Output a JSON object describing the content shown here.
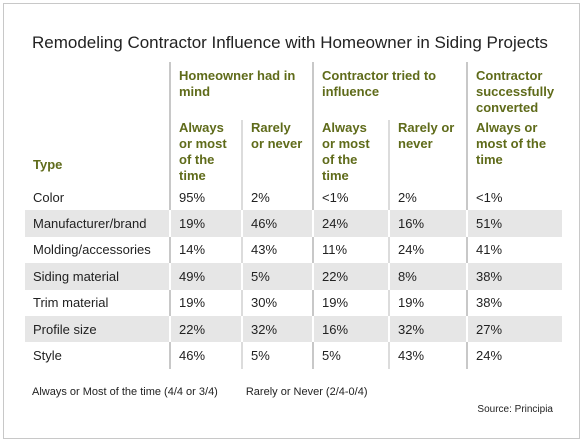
{
  "title": "Remodeling Contractor Influence with Homeowner in Siding Projects",
  "table": {
    "type_header": "Type",
    "groups": [
      "Homeowner had in mind",
      "Contractor tried to influence",
      "Contractor successfully converted"
    ],
    "subheaders": [
      "Always or most of the time",
      "Rarely or never",
      "Always or most of the time",
      "Rarely or never",
      "Always or most of the time"
    ],
    "rows": [
      [
        "Color",
        "95%",
        "2%",
        "<1%",
        "2%",
        "<1%"
      ],
      [
        "Manufacturer/brand",
        "19%",
        "46%",
        "24%",
        "16%",
        "51%"
      ],
      [
        "Molding/accessories",
        "14%",
        "43%",
        "11%",
        "24%",
        "41%"
      ],
      [
        "Siding material",
        "49%",
        "5%",
        "22%",
        "8%",
        "38%"
      ],
      [
        "Trim material",
        "19%",
        "30%",
        "19%",
        "19%",
        "38%"
      ],
      [
        "Profile size",
        "22%",
        "32%",
        "16%",
        "32%",
        "27%"
      ],
      [
        "Style",
        "46%",
        "5%",
        "5%",
        "43%",
        "24%"
      ]
    ]
  },
  "legend": [
    "Always or Most of the time (4/4 or 3/4)",
    "Rarely or Never (2/4-0/4)"
  ],
  "source": "Source: Principia"
}
